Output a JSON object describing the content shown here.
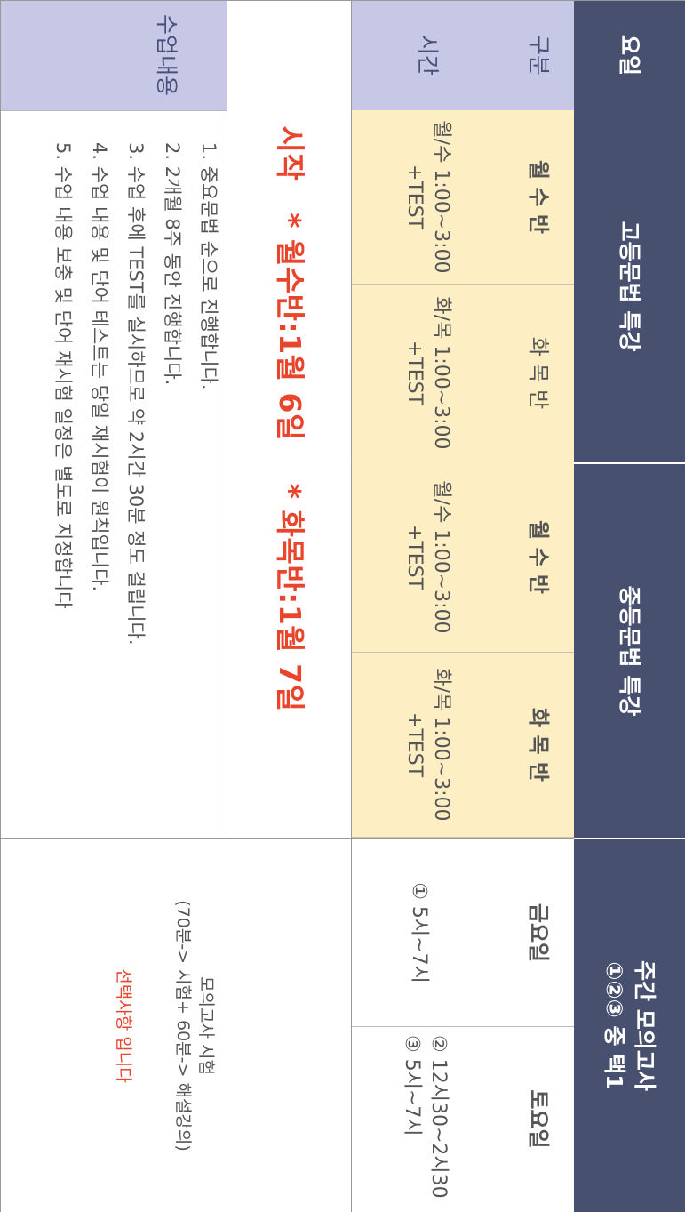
{
  "header": {
    "day_label": "요일",
    "high_school": "고등문법 특강",
    "middle_school": "중등문법 특강",
    "mock_exam_title": "주간 모의고사",
    "mock_exam_sub": "①②③ 중 택1"
  },
  "row_class": {
    "label": "구분",
    "cells": [
      "월 수 반",
      "화 목 반",
      "월 수 반",
      "화 목 반",
      "금요일",
      "토요일"
    ]
  },
  "row_time": {
    "label": "시간",
    "cells": [
      [
        "월/수 1:00~3:00",
        "+TEST"
      ],
      [
        "화/목 1:00~3:00",
        "+TEST"
      ],
      [
        "월/수 1:00~3:00",
        "+TEST"
      ],
      [
        "화/목 1:00~3:00",
        "+TEST"
      ]
    ],
    "friday": "① 5시~7시",
    "saturday_1": "② 12시30~2시30",
    "saturday_2": "③ 5시~7시"
  },
  "notice": "시작   * 월수반:1월 6일    * 화목반:1월 7일",
  "content": {
    "label": "수업내용",
    "items": [
      "1. 중요문법 순으로 진행합니다.",
      "2. 2개월 8주 동안 진행합니다.",
      "3. 수업 후에 TEST를 실시하므로 약 2시간 30분 정도 걸립니다.",
      "4. 수업 내용 및 단어 테스트는 당일 재시험이 원칙입니다.",
      "5.  수업 내용 보충 및 단어 재시험 일정은 별도로 지정합니다"
    ],
    "exam_title": "모의고사 시험",
    "exam_detail": "(70분-> 시험+ 60분-> 해설강의)",
    "exam_note": "선택사항 입니다"
  },
  "colors": {
    "header_navy": "#48506f",
    "label_lavender": "#c7c8e6",
    "time_cream": "#fdeec3",
    "accent_red": "#e8452c"
  }
}
